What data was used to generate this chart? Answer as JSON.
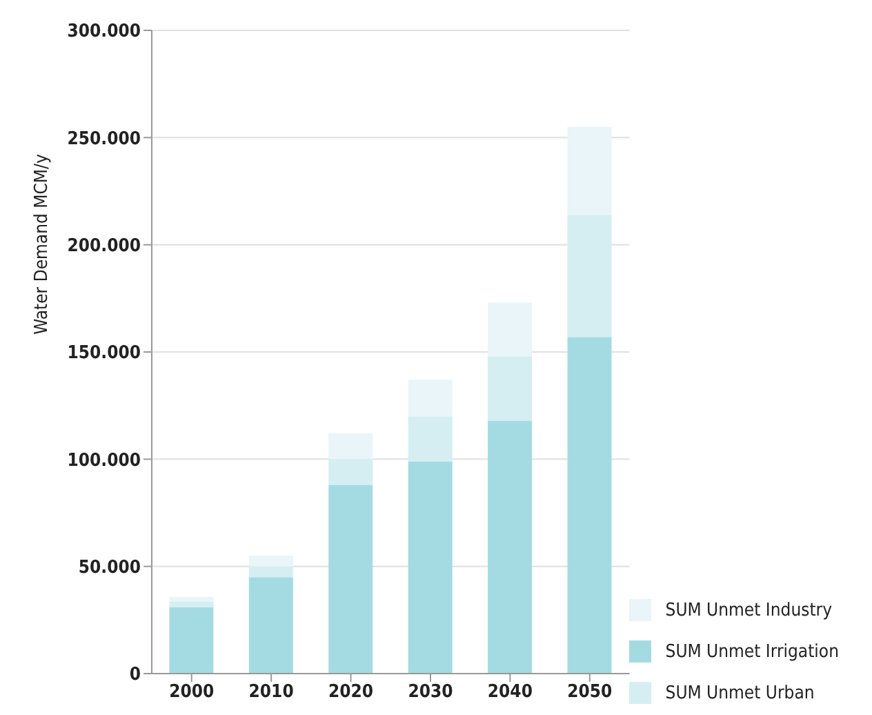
{
  "chart_data": {
    "type": "bar",
    "ylabel": "Water Demand MCM/y",
    "categories": [
      "2000",
      "2010",
      "2020",
      "2030",
      "2040",
      "2050"
    ],
    "stacked": true,
    "series": [
      {
        "name": "SUM Unmet Irrigation",
        "color": "#a4dbe3",
        "values": [
          31000,
          45000,
          88000,
          99000,
          118000,
          157000
        ]
      },
      {
        "name": "SUM Unmet Urban",
        "color": "#d5eef2",
        "values": [
          2500,
          5000,
          12000,
          21000,
          30000,
          57000
        ]
      },
      {
        "name": "SUM Unmet Industry",
        "color": "#e9f5f8",
        "values": [
          2200,
          5000,
          12000,
          17000,
          25000,
          41000
        ]
      }
    ],
    "ylim": [
      0,
      300000
    ],
    "yticks": [
      {
        "value": 0,
        "label": "0"
      },
      {
        "value": 50000,
        "label": "50.000"
      },
      {
        "value": 100000,
        "label": "100.000"
      },
      {
        "value": 150000,
        "label": "150.000"
      },
      {
        "value": 200000,
        "label": "200.000"
      },
      {
        "value": 250000,
        "label": "250.000"
      },
      {
        "value": 300000,
        "label": "300.000"
      }
    ],
    "grid": "y",
    "legend": "bottom right"
  }
}
